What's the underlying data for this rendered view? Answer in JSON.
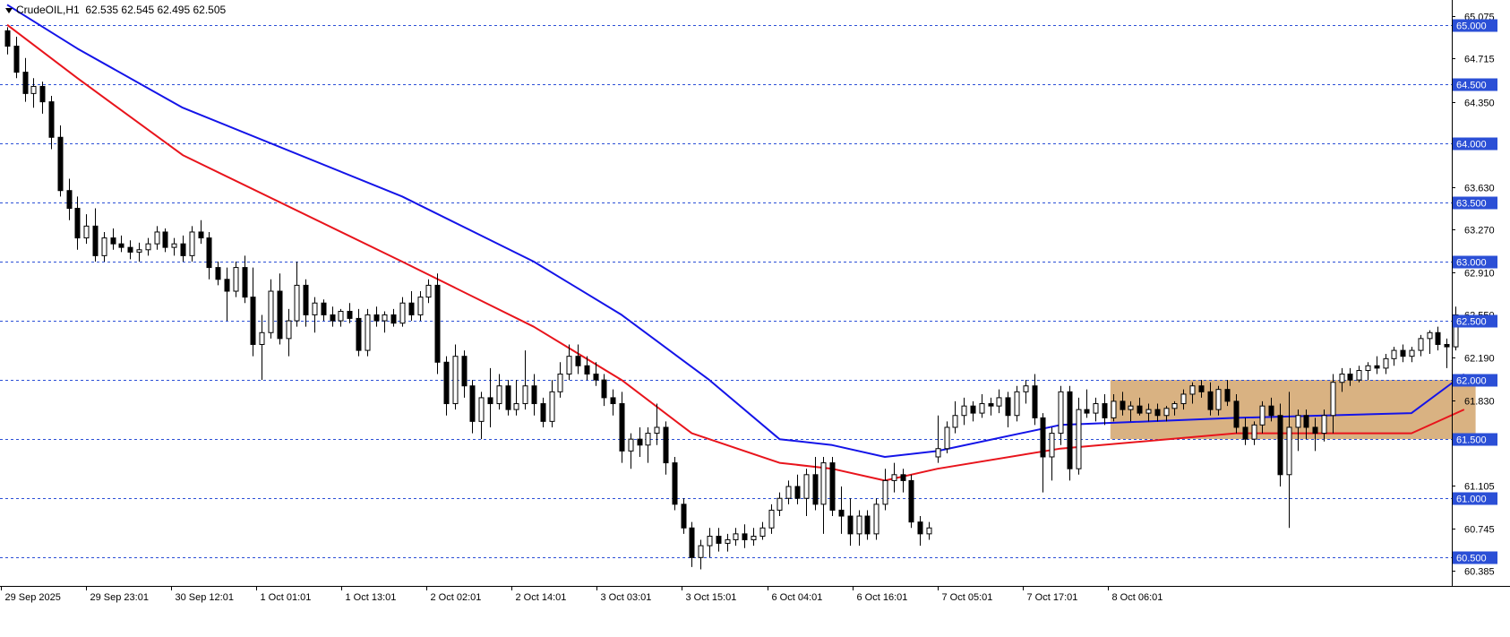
{
  "header": {
    "symbol": "CrudeOIL,H1",
    "ohlc": "62.535 62.545 62.495 62.505"
  },
  "colors": {
    "candle": "#000000",
    "ma_fast": "#e8141c",
    "ma_slow": "#1414e8",
    "level_line": "#2b4fd6",
    "level_label_bg": "#2b4fd6",
    "zone": "#d2a46c"
  },
  "chart_data": {
    "type": "candlestick",
    "title": "",
    "ylim": [
      60.26,
      65.21
    ],
    "price_ticks": [
      "65.075",
      "64.715",
      "64.350",
      "63.630",
      "63.270",
      "62.910",
      "62.550",
      "62.190",
      "61.830",
      "61.105",
      "60.745",
      "60.385"
    ],
    "time_ticks": [
      "29 Sep 2025",
      "29 Sep 23:01",
      "30 Sep 12:01",
      "1 Oct 01:01",
      "1 Oct 13:01",
      "2 Oct 02:01",
      "2 Oct 14:01",
      "3 Oct 03:01",
      "3 Oct 15:01",
      "6 Oct 04:01",
      "6 Oct 16:01",
      "7 Oct 05:01",
      "7 Oct 17:01",
      "8 Oct 06:01"
    ],
    "levels": [
      {
        "value": 65.0,
        "label": "65.000"
      },
      {
        "value": 64.5,
        "label": "64.500"
      },
      {
        "value": 64.0,
        "label": "64.000"
      },
      {
        "value": 63.5,
        "label": "63.500"
      },
      {
        "value": 63.0,
        "label": "63.000"
      },
      {
        "value": 62.5,
        "label": "62.500"
      },
      {
        "value": 62.0,
        "label": "62.000"
      },
      {
        "value": 61.5,
        "label": "61.500"
      },
      {
        "value": 61.0,
        "label": "61.000"
      },
      {
        "value": 60.5,
        "label": "60.500"
      }
    ],
    "zone": {
      "from_bar": 126,
      "to_bar": 167,
      "low": 61.5,
      "high": 62.0
    },
    "bars": [
      [
        64.95,
        64.98,
        64.75,
        64.82
      ],
      [
        64.82,
        64.9,
        64.55,
        64.6
      ],
      [
        64.6,
        64.72,
        64.35,
        64.42
      ],
      [
        64.42,
        64.55,
        64.3,
        64.48
      ],
      [
        64.48,
        64.52,
        64.25,
        64.35
      ],
      [
        64.35,
        64.4,
        63.95,
        64.05
      ],
      [
        64.05,
        64.15,
        63.55,
        63.6
      ],
      [
        63.6,
        63.7,
        63.35,
        63.45
      ],
      [
        63.45,
        63.55,
        63.1,
        63.2
      ],
      [
        63.2,
        63.4,
        63.15,
        63.3
      ],
      [
        63.3,
        63.45,
        63.0,
        63.05
      ],
      [
        63.05,
        63.25,
        63.0,
        63.2
      ],
      [
        63.2,
        63.28,
        63.1,
        63.15
      ],
      [
        63.15,
        63.22,
        63.08,
        63.12
      ],
      [
        63.12,
        63.18,
        63.02,
        63.08
      ],
      [
        63.08,
        63.16,
        63.0,
        63.1
      ],
      [
        63.1,
        63.2,
        63.05,
        63.15
      ],
      [
        63.15,
        63.3,
        63.1,
        63.25
      ],
      [
        63.25,
        63.28,
        63.08,
        63.12
      ],
      [
        63.12,
        63.2,
        63.05,
        63.15
      ],
      [
        63.15,
        63.22,
        63.0,
        63.05
      ],
      [
        63.05,
        63.3,
        63.0,
        63.25
      ],
      [
        63.25,
        63.35,
        63.15,
        63.2
      ],
      [
        63.2,
        63.25,
        62.85,
        62.95
      ],
      [
        62.95,
        63.0,
        62.8,
        62.85
      ],
      [
        62.85,
        62.95,
        62.5,
        62.75
      ],
      [
        62.75,
        63.0,
        62.7,
        62.95
      ],
      [
        62.95,
        63.05,
        62.65,
        62.7
      ],
      [
        62.7,
        62.95,
        62.2,
        62.3
      ],
      [
        62.3,
        62.55,
        62.0,
        62.4
      ],
      [
        62.4,
        62.85,
        62.35,
        62.75
      ],
      [
        62.75,
        62.9,
        62.3,
        62.35
      ],
      [
        62.35,
        62.6,
        62.2,
        62.5
      ],
      [
        62.5,
        63.0,
        62.45,
        62.8
      ],
      [
        62.8,
        62.85,
        62.45,
        62.55
      ],
      [
        62.55,
        62.7,
        62.4,
        62.65
      ],
      [
        62.65,
        62.68,
        62.5,
        62.55
      ],
      [
        62.55,
        62.62,
        62.45,
        62.5
      ],
      [
        62.5,
        62.6,
        62.45,
        62.58
      ],
      [
        62.58,
        62.65,
        62.48,
        62.52
      ],
      [
        62.52,
        62.6,
        62.2,
        62.25
      ],
      [
        62.25,
        62.6,
        62.2,
        62.55
      ],
      [
        62.55,
        62.62,
        62.45,
        62.5
      ],
      [
        62.5,
        62.58,
        62.4,
        62.55
      ],
      [
        62.55,
        62.6,
        62.45,
        62.48
      ],
      [
        62.48,
        62.7,
        62.45,
        62.65
      ],
      [
        62.65,
        62.75,
        62.5,
        62.55
      ],
      [
        62.55,
        62.75,
        62.5,
        62.7
      ],
      [
        62.7,
        62.85,
        62.65,
        62.8
      ],
      [
        62.8,
        62.9,
        62.05,
        62.15
      ],
      [
        62.15,
        62.2,
        61.7,
        61.8
      ],
      [
        61.8,
        62.3,
        61.75,
        62.2
      ],
      [
        62.2,
        62.25,
        61.85,
        61.95
      ],
      [
        61.95,
        62.0,
        61.55,
        61.65
      ],
      [
        61.65,
        61.9,
        61.5,
        61.85
      ],
      [
        61.85,
        62.1,
        61.6,
        61.8
      ],
      [
        61.8,
        62.05,
        61.75,
        61.95
      ],
      [
        61.95,
        62.0,
        61.7,
        61.75
      ],
      [
        61.75,
        62.0,
        61.7,
        61.8
      ],
      [
        61.8,
        62.25,
        61.75,
        61.95
      ],
      [
        61.95,
        62.05,
        61.7,
        61.8
      ],
      [
        61.8,
        61.85,
        61.6,
        61.65
      ],
      [
        61.65,
        62.0,
        61.6,
        61.9
      ],
      [
        61.9,
        62.15,
        61.85,
        62.05
      ],
      [
        62.05,
        62.3,
        62.0,
        62.2
      ],
      [
        62.2,
        62.3,
        62.05,
        62.12
      ],
      [
        62.12,
        62.2,
        62.0,
        62.05
      ],
      [
        62.05,
        62.15,
        61.95,
        62.0
      ],
      [
        62.0,
        62.05,
        61.78,
        61.85
      ],
      [
        61.85,
        61.92,
        61.7,
        61.8
      ],
      [
        61.8,
        61.9,
        61.3,
        61.4
      ],
      [
        61.4,
        61.55,
        61.25,
        61.5
      ],
      [
        61.5,
        61.6,
        61.35,
        61.45
      ],
      [
        61.45,
        61.6,
        61.3,
        61.55
      ],
      [
        61.55,
        61.8,
        61.45,
        61.6
      ],
      [
        61.6,
        61.65,
        61.2,
        61.3
      ],
      [
        61.3,
        61.35,
        60.9,
        60.95
      ],
      [
        60.95,
        61.0,
        60.7,
        60.75
      ],
      [
        60.75,
        60.8,
        60.42,
        60.5
      ],
      [
        60.5,
        60.65,
        60.4,
        60.6
      ],
      [
        60.6,
        60.75,
        60.5,
        60.68
      ],
      [
        60.68,
        60.75,
        60.55,
        60.62
      ],
      [
        60.62,
        60.7,
        60.55,
        60.65
      ],
      [
        60.65,
        60.75,
        60.6,
        60.7
      ],
      [
        60.7,
        60.78,
        60.58,
        60.65
      ],
      [
        60.65,
        60.75,
        60.6,
        60.68
      ],
      [
        60.68,
        60.8,
        60.65,
        60.75
      ],
      [
        60.75,
        60.95,
        60.7,
        60.9
      ],
      [
        60.9,
        61.05,
        60.85,
        61.0
      ],
      [
        61.0,
        61.15,
        60.95,
        61.1
      ],
      [
        61.1,
        61.2,
        60.95,
        61.0
      ],
      [
        61.0,
        61.25,
        60.85,
        61.2
      ],
      [
        61.2,
        61.35,
        60.9,
        60.95
      ],
      [
        60.95,
        61.35,
        60.7,
        61.3
      ],
      [
        61.3,
        61.35,
        60.85,
        60.9
      ],
      [
        60.9,
        61.1,
        60.7,
        60.85
      ],
      [
        60.85,
        61.0,
        60.6,
        60.7
      ],
      [
        60.7,
        60.9,
        60.6,
        60.85
      ],
      [
        60.85,
        60.9,
        60.65,
        60.7
      ],
      [
        60.7,
        61.0,
        60.65,
        60.95
      ],
      [
        60.95,
        61.25,
        60.9,
        61.15
      ],
      [
        61.15,
        61.3,
        61.05,
        61.2
      ],
      [
        61.2,
        61.25,
        61.05,
        61.15
      ],
      [
        61.15,
        61.2,
        60.75,
        60.8
      ],
      [
        60.8,
        60.85,
        60.6,
        60.7
      ],
      [
        60.7,
        60.8,
        60.65,
        60.75
      ],
      [
        61.35,
        61.7,
        61.3,
        61.42
      ],
      [
        61.42,
        61.65,
        61.38,
        61.6
      ],
      [
        61.6,
        61.82,
        61.55,
        61.7
      ],
      [
        61.7,
        61.85,
        61.62,
        61.78
      ],
      [
        61.78,
        61.82,
        61.65,
        61.72
      ],
      [
        61.72,
        61.88,
        61.68,
        61.8
      ],
      [
        61.8,
        61.85,
        61.7,
        61.78
      ],
      [
        61.78,
        61.92,
        61.72,
        61.85
      ],
      [
        61.85,
        61.9,
        61.6,
        61.7
      ],
      [
        61.7,
        61.95,
        61.65,
        61.9
      ],
      [
        61.9,
        62.0,
        61.8,
        61.95
      ],
      [
        61.95,
        62.05,
        61.62,
        61.68
      ],
      [
        61.68,
        61.72,
        61.05,
        61.35
      ],
      [
        61.35,
        61.6,
        61.15,
        61.55
      ],
      [
        61.55,
        61.95,
        61.45,
        61.9
      ],
      [
        61.9,
        61.95,
        61.15,
        61.25
      ],
      [
        61.25,
        61.85,
        61.2,
        61.75
      ],
      [
        61.75,
        61.92,
        61.68,
        61.72
      ],
      [
        61.72,
        61.85,
        61.65,
        61.8
      ],
      [
        61.8,
        61.88,
        61.62,
        61.68
      ],
      [
        61.68,
        61.88,
        61.65,
        61.82
      ],
      [
        61.82,
        61.9,
        61.7,
        61.75
      ],
      [
        61.75,
        61.82,
        61.65,
        61.78
      ],
      [
        61.78,
        61.85,
        61.7,
        61.72
      ],
      [
        61.72,
        61.8,
        61.65,
        61.75
      ],
      [
        61.75,
        61.8,
        61.65,
        61.7
      ],
      [
        61.7,
        61.78,
        61.65,
        61.76
      ],
      [
        61.76,
        61.82,
        61.7,
        61.8
      ],
      [
        61.8,
        61.92,
        61.75,
        61.88
      ],
      [
        61.88,
        61.98,
        61.8,
        61.95
      ],
      [
        61.95,
        62.0,
        61.85,
        61.9
      ],
      [
        61.9,
        61.98,
        61.7,
        61.75
      ],
      [
        61.75,
        61.95,
        61.7,
        61.92
      ],
      [
        61.92,
        62.0,
        61.78,
        61.82
      ],
      [
        61.82,
        61.88,
        61.55,
        61.6
      ],
      [
        61.6,
        61.68,
        61.45,
        61.5
      ],
      [
        61.5,
        61.65,
        61.45,
        61.62
      ],
      [
        61.62,
        61.82,
        61.55,
        61.78
      ],
      [
        61.78,
        61.85,
        61.65,
        61.7
      ],
      [
        61.7,
        61.8,
        61.1,
        61.2
      ],
      [
        61.2,
        61.9,
        60.75,
        61.6
      ],
      [
        61.6,
        61.75,
        61.4,
        61.7
      ],
      [
        61.7,
        61.75,
        61.5,
        61.6
      ],
      [
        61.6,
        61.68,
        61.4,
        61.55
      ],
      [
        61.55,
        61.75,
        61.48,
        61.7
      ],
      [
        61.7,
        62.05,
        61.55,
        61.98
      ],
      [
        61.98,
        62.1,
        61.9,
        62.05
      ],
      [
        62.05,
        62.1,
        61.95,
        62.0
      ],
      [
        62.0,
        62.12,
        61.98,
        62.08
      ],
      [
        62.08,
        62.15,
        62.0,
        62.12
      ],
      [
        62.12,
        62.2,
        62.05,
        62.1
      ],
      [
        62.1,
        62.22,
        62.05,
        62.18
      ],
      [
        62.18,
        62.28,
        62.12,
        62.25
      ],
      [
        62.25,
        62.3,
        62.15,
        62.2
      ],
      [
        62.2,
        62.28,
        62.15,
        62.25
      ],
      [
        62.25,
        62.38,
        62.2,
        62.35
      ],
      [
        62.35,
        62.42,
        62.22,
        62.4
      ],
      [
        62.4,
        62.45,
        62.25,
        62.3
      ],
      [
        62.3,
        62.35,
        62.1,
        62.28
      ],
      [
        62.28,
        62.62,
        62.25,
        62.55
      ],
      [
        62.535,
        62.545,
        62.495,
        62.505
      ]
    ],
    "series": [
      {
        "name": "",
        "color_key": "ma_slow",
        "points": [
          [
            0,
            65.17
          ],
          [
            8,
            64.8
          ],
          [
            20,
            64.3
          ],
          [
            45,
            63.55
          ],
          [
            60,
            63.0
          ],
          [
            70,
            62.55
          ],
          [
            80,
            62.0
          ],
          [
            88,
            61.5
          ],
          [
            94,
            61.45
          ],
          [
            100,
            61.35
          ],
          [
            106,
            61.4
          ],
          [
            120,
            61.62
          ],
          [
            140,
            61.68
          ],
          [
            160,
            61.72
          ],
          [
            166,
            62.05
          ]
        ]
      },
      {
        "name": "",
        "color_key": "ma_fast",
        "points": [
          [
            0,
            65.0
          ],
          [
            8,
            64.55
          ],
          [
            20,
            63.9
          ],
          [
            45,
            63.0
          ],
          [
            60,
            62.45
          ],
          [
            70,
            62.0
          ],
          [
            78,
            61.55
          ],
          [
            88,
            61.3
          ],
          [
            94,
            61.25
          ],
          [
            100,
            61.15
          ],
          [
            106,
            61.25
          ],
          [
            120,
            61.42
          ],
          [
            140,
            61.55
          ],
          [
            160,
            61.55
          ],
          [
            166,
            61.75
          ]
        ]
      }
    ]
  }
}
